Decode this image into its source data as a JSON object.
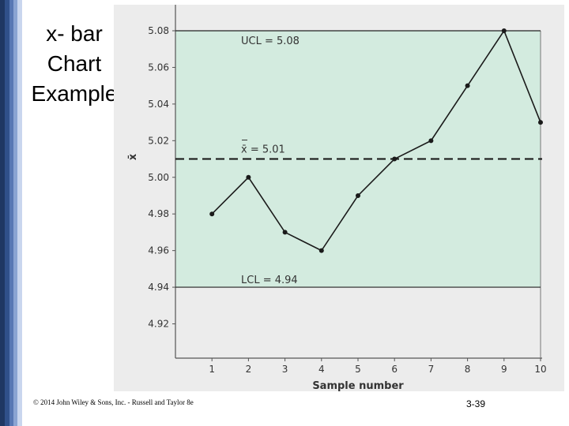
{
  "slide": {
    "title": "x- bar Chart Example",
    "footer_left": "© 2014 John Wiley & Sons, Inc. - Russell and Taylor 8e",
    "page_number": "3-39"
  },
  "colors": {
    "control_zone": "#d3ebdf",
    "panel": "#ececec",
    "line": "#1a1a1a"
  },
  "chart_data": {
    "type": "line",
    "title": "",
    "xlabel": "Sample number",
    "ylabel": "x̄",
    "x": [
      1,
      2,
      3,
      4,
      5,
      6,
      7,
      8,
      9,
      10
    ],
    "values": [
      4.98,
      5.0,
      4.97,
      4.96,
      4.99,
      5.01,
      5.02,
      5.05,
      5.08,
      5.03
    ],
    "ylim": [
      4.9,
      5.09
    ],
    "xlim": [
      0,
      10
    ],
    "xticks": [
      "1",
      "2",
      "3",
      "4",
      "5",
      "6",
      "7",
      "8",
      "9",
      "10"
    ],
    "yticks": [
      "4.92",
      "4.94",
      "4.96",
      "4.98",
      "5.00",
      "5.02",
      "5.04",
      "5.06",
      "5.08"
    ],
    "reference_lines": [
      {
        "label": "UCL = 5.08",
        "value": 5.08,
        "style": "solid"
      },
      {
        "label": "x̄ = 5.01",
        "value": 5.01,
        "style": "dashed"
      },
      {
        "label": "LCL = 4.94",
        "value": 4.94,
        "style": "solid"
      }
    ],
    "grid": false,
    "legend": "none"
  }
}
